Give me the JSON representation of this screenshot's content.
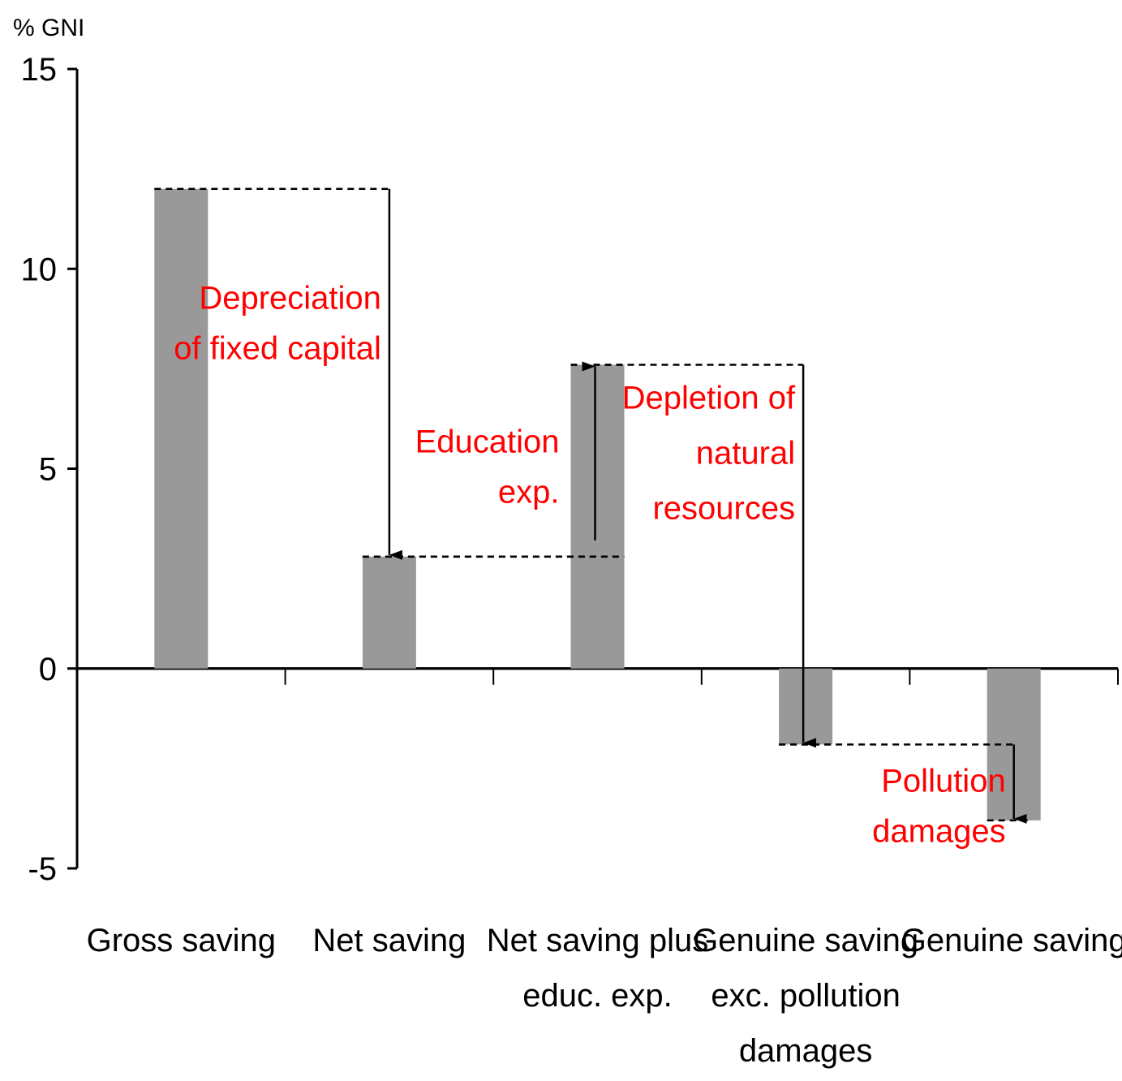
{
  "chart_data": {
    "type": "bar",
    "title": "",
    "ylabel": "% GNI",
    "xlabel": "",
    "ylim": [
      -5,
      15
    ],
    "yticks": [
      15,
      10,
      5,
      0,
      -5
    ],
    "categories": [
      [
        "Gross saving"
      ],
      [
        "Net saving"
      ],
      [
        "Net saving plus",
        "educ. exp."
      ],
      [
        "Genuine saving",
        "exc. pollution",
        "damages"
      ],
      [
        "Genuine saving"
      ]
    ],
    "values": [
      12.0,
      2.8,
      7.6,
      -1.9,
      -3.8
    ],
    "bar_color": "#999999",
    "annotations": [
      {
        "lines": [
          "Depreciation",
          "of fixed capital"
        ],
        "from_bar": 0,
        "to_bar": 1,
        "color": "#ff0000"
      },
      {
        "lines": [
          "Education",
          "exp."
        ],
        "from_bar": 1,
        "to_bar": 2,
        "color": "#ff0000"
      },
      {
        "lines": [
          "Depletion of",
          "natural",
          "resources"
        ],
        "from_bar": 2,
        "to_bar": 3,
        "color": "#ff0000"
      },
      {
        "lines": [
          "Pollution",
          "damages"
        ],
        "from_bar": 3,
        "to_bar": 4,
        "color": "#ff0000"
      }
    ]
  }
}
